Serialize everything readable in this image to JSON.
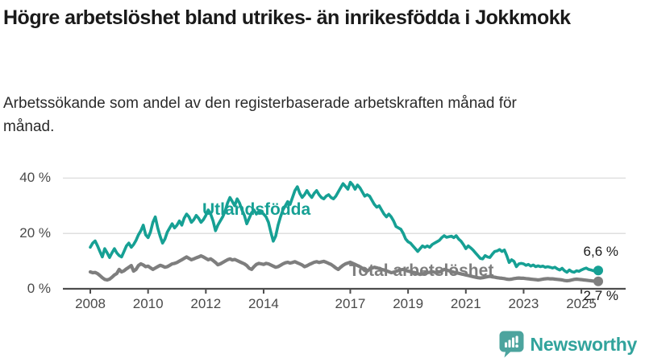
{
  "title": "Högre arbetslöshet bland utrikes- än inrikesfödda i Jokkmokk",
  "subtitle": "Arbetssökande som andel av den registerbaserade arbetskraften månad för månad.",
  "colors": {
    "accent_teal": "#16a094",
    "line_gray": "#7e7e7e",
    "grid": "#dcdcdc",
    "axis": "#4d4d4d",
    "logo_teal": "#4ca49e",
    "logo_text_teal": "#31a39c"
  },
  "logo": {
    "text": "Newsworthy",
    "icon": "bar-chart-speech-bubble-icon"
  },
  "chart_data": {
    "type": "line",
    "title": "Högre arbetslöshet bland utrikes- än inrikesfödda i Jokkmokk",
    "subtitle": "Arbetssökande som andel av den registerbaserade arbetskraften månad för månad.",
    "xlabel": "",
    "ylabel": "",
    "x_start_year": 2008,
    "x_step_months": 1,
    "x_ticks": [
      2008,
      2010,
      2012,
      2014,
      2017,
      2019,
      2021,
      2023,
      2025
    ],
    "y_ticks": [
      0,
      20,
      40
    ],
    "y_tick_labels": [
      "0 %",
      "20 %",
      "40 %"
    ],
    "ylim": [
      0,
      44
    ],
    "grid": "horizontal",
    "legend_position": "inline-labels",
    "series": [
      {
        "name": "Utlandsfödda",
        "color": "#16a094",
        "end_label": "6,6 %",
        "end_value": 6.6,
        "values": [
          15.0,
          16.5,
          17.3,
          15.5,
          13.5,
          11.5,
          14.5,
          13.0,
          11.3,
          13.0,
          14.5,
          13.0,
          12.0,
          11.5,
          13.5,
          15.5,
          16.5,
          15.0,
          16.0,
          17.5,
          19.5,
          21.0,
          23.0,
          19.5,
          18.5,
          20.5,
          24.0,
          26.0,
          22.0,
          19.0,
          16.5,
          18.0,
          20.5,
          22.0,
          23.5,
          22.0,
          23.0,
          24.5,
          23.0,
          25.5,
          27.0,
          26.0,
          24.0,
          25.0,
          26.5,
          25.5,
          24.0,
          25.0,
          26.5,
          28.5,
          27.0,
          24.5,
          21.0,
          23.0,
          24.5,
          26.0,
          28.0,
          31.0,
          33.0,
          31.5,
          30.0,
          32.5,
          31.0,
          28.5,
          26.5,
          23.5,
          25.5,
          27.5,
          28.5,
          27.0,
          28.0,
          27.5,
          27.0,
          26.0,
          24.0,
          20.5,
          17.2,
          19.0,
          23.0,
          26.0,
          28.5,
          30.0,
          31.5,
          30.5,
          33.0,
          35.5,
          36.9,
          34.5,
          33.0,
          34.0,
          35.5,
          34.0,
          33.0,
          34.5,
          35.5,
          34.0,
          33.0,
          32.5,
          33.5,
          34.0,
          33.0,
          32.5,
          33.5,
          35.0,
          36.5,
          38.0,
          37.0,
          36.0,
          38.5,
          37.5,
          36.0,
          37.5,
          36.5,
          35.0,
          33.5,
          34.0,
          33.5,
          32.0,
          30.5,
          29.5,
          30.0,
          28.5,
          27.0,
          26.0,
          27.0,
          26.0,
          24.5,
          22.5,
          22.0,
          21.5,
          20.0,
          18.0,
          17.0,
          16.5,
          15.5,
          14.5,
          13.5,
          14.5,
          15.5,
          15.0,
          15.5,
          15.0,
          16.0,
          16.5,
          17.0,
          17.5,
          18.5,
          19.2,
          18.6,
          18.8,
          19.0,
          18.5,
          19.2,
          18.0,
          17.2,
          16.0,
          14.5,
          15.5,
          14.8,
          14.0,
          13.0,
          12.0,
          11.0,
          10.8,
          12.0,
          11.5,
          11.3,
          12.5,
          13.5,
          13.7,
          14.2,
          13.5,
          14.0,
          12.0,
          9.5,
          10.5,
          9.9,
          8.0,
          9.0,
          9.2,
          9.0,
          8.5,
          8.8,
          8.2,
          8.6,
          8.0,
          8.3,
          8.0,
          8.2,
          7.8,
          8.0,
          7.8,
          7.5,
          7.8,
          7.2,
          6.8,
          7.4,
          6.5,
          6.0,
          6.8,
          6.2,
          6.0,
          6.5,
          6.3,
          6.8,
          7.2,
          7.5,
          7.0,
          6.8,
          6.5,
          6.8,
          6.6
        ]
      },
      {
        "name": "Total arbetslöshet",
        "color": "#7e7e7e",
        "end_label": "2,7 %",
        "end_value": 2.7,
        "values": [
          6.1,
          5.8,
          5.9,
          5.5,
          4.8,
          4.0,
          3.4,
          3.2,
          3.5,
          4.2,
          5.0,
          5.5,
          7.0,
          6.1,
          6.5,
          7.2,
          7.8,
          8.4,
          6.4,
          7.0,
          8.4,
          9.0,
          8.6,
          8.0,
          8.2,
          7.6,
          7.0,
          7.5,
          8.0,
          8.5,
          8.2,
          7.8,
          8.0,
          8.5,
          9.0,
          9.2,
          9.5,
          10.0,
          10.5,
          11.0,
          11.5,
          11.0,
          10.5,
          10.8,
          11.2,
          11.5,
          11.9,
          11.5,
          11.0,
          10.5,
          10.8,
          10.2,
          9.5,
          8.7,
          9.0,
          9.5,
          10.0,
          10.5,
          10.8,
          10.4,
          10.6,
          10.2,
          9.8,
          9.4,
          9.0,
          8.4,
          7.4,
          7.0,
          8.0,
          8.8,
          9.2,
          9.0,
          8.8,
          9.2,
          9.0,
          8.6,
          8.2,
          7.8,
          8.0,
          8.5,
          9.0,
          9.4,
          9.6,
          9.3,
          9.5,
          9.8,
          9.4,
          9.0,
          8.6,
          8.0,
          8.3,
          8.8,
          9.2,
          9.6,
          9.8,
          9.5,
          9.7,
          9.9,
          9.6,
          9.2,
          8.8,
          8.2,
          7.5,
          7.0,
          7.8,
          8.5,
          9.0,
          9.3,
          9.6,
          9.2,
          8.8,
          8.4,
          8.0,
          7.4,
          6.6,
          6.4,
          7.0,
          7.5,
          7.8,
          7.6,
          7.3,
          7.0,
          6.8,
          6.5,
          6.2,
          5.8,
          6.0,
          6.3,
          6.6,
          6.9,
          7.0,
          6.7,
          6.4,
          6.2,
          6.0,
          5.8,
          5.5,
          5.2,
          5.4,
          5.6,
          5.8,
          6.0,
          6.2,
          6.0,
          5.8,
          6.0,
          6.5,
          7.0,
          6.8,
          6.5,
          6.2,
          6.0,
          5.8,
          5.6,
          5.4,
          5.2,
          5.0,
          4.8,
          4.6,
          4.4,
          4.2,
          4.0,
          3.9,
          4.0,
          4.2,
          4.4,
          4.5,
          4.3,
          4.2,
          4.0,
          3.9,
          3.8,
          3.7,
          3.5,
          3.4,
          3.5,
          3.7,
          3.8,
          3.9,
          3.8,
          3.8,
          3.7,
          3.6,
          3.5,
          3.4,
          3.3,
          3.2,
          3.3,
          3.5,
          3.6,
          3.7,
          3.6,
          3.6,
          3.5,
          3.4,
          3.3,
          3.2,
          3.0,
          2.9,
          3.0,
          3.2,
          3.4,
          3.5,
          3.4,
          3.3,
          3.2,
          3.1,
          3.0,
          2.9,
          2.8,
          2.8,
          2.7
        ]
      }
    ]
  }
}
